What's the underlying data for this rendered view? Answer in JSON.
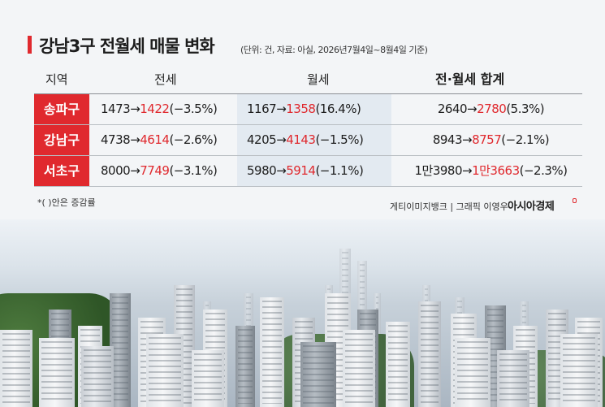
{
  "title": "강남3구 전월세 매물 변화",
  "subtitle": "(단위: 건, 자료: 아실, 2026년7월4일~8월4일 기준)",
  "headers": {
    "region": "지역",
    "jeonse": "전세",
    "wolse": "월세",
    "total": "전·월세 합계"
  },
  "arrow": "→",
  "rows": [
    {
      "region": "송파구",
      "jeonse": {
        "before": "1473",
        "after": "1422",
        "change": "(−3.5%)"
      },
      "wolse": {
        "before": "1167",
        "after": "1358",
        "change": "(16.4%)"
      },
      "total": {
        "before": "2640",
        "after": "2780",
        "change": "(5.3%)"
      }
    },
    {
      "region": "강남구",
      "jeonse": {
        "before": "4738",
        "after": "4614",
        "change": "(−2.6%)"
      },
      "wolse": {
        "before": "4205",
        "after": "4143",
        "change": "(−1.5%)"
      },
      "total": {
        "before": "8943",
        "after": "8757",
        "change": "(−2.1%)"
      }
    },
    {
      "region": "서초구",
      "jeonse": {
        "before": "8000",
        "after": "7749",
        "change": "(−3.1%)"
      },
      "wolse": {
        "before": "5980",
        "after": "5914",
        "change": "(−1.1%)"
      },
      "total": {
        "before": "1만3980",
        "after": "1만3663",
        "change": "(−2.3%)"
      }
    }
  ],
  "footnote": "*(   )안은 증감률",
  "credit": "게티이미지뱅크 | 그래픽 이영우",
  "brand": "아시아경제",
  "colors": {
    "accent": "#e0292e",
    "wolse_band": "#e3eaf1"
  }
}
